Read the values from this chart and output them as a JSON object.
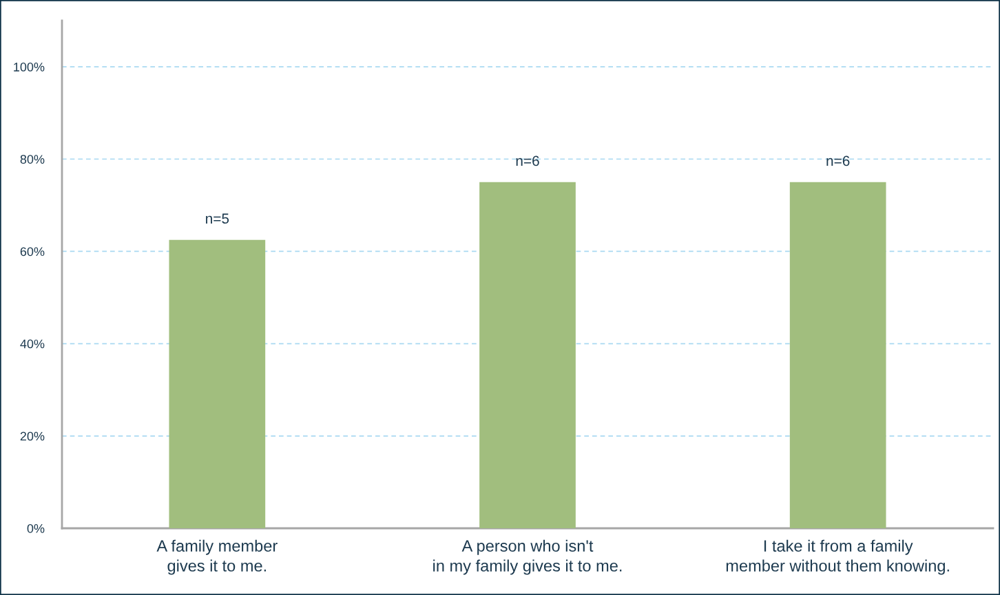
{
  "chart_data": {
    "type": "bar",
    "categories": [
      "A family member\ngives it to me.",
      "A person who isn't\nin my family gives it to me.",
      "I take it from a family\nmember without them knowing."
    ],
    "series": [
      {
        "color": "#a1be7e",
        "values": [
          62.5,
          75,
          75
        ]
      }
    ],
    "annotations": [
      {
        "text": "n=5",
        "x": "A family member\ngives it to me.",
        "y": 62.5
      },
      {
        "text": "n=6",
        "x": "A person who isn't\nin my family gives it to me.",
        "y": 75
      },
      {
        "text": "n=6",
        "x": "I take it from a family\nmember without them knowing.",
        "y": 75
      }
    ],
    "ylim": [
      0,
      110
    ],
    "yticks": [
      {
        "value": 0,
        "label": "0%"
      },
      {
        "value": 20,
        "label": "20%"
      },
      {
        "value": 40,
        "label": "40%"
      },
      {
        "value": 60,
        "label": "60%"
      },
      {
        "value": 80,
        "label": "80%"
      },
      {
        "value": 100,
        "label": "100%"
      }
    ],
    "grid": "y",
    "legend": false
  }
}
